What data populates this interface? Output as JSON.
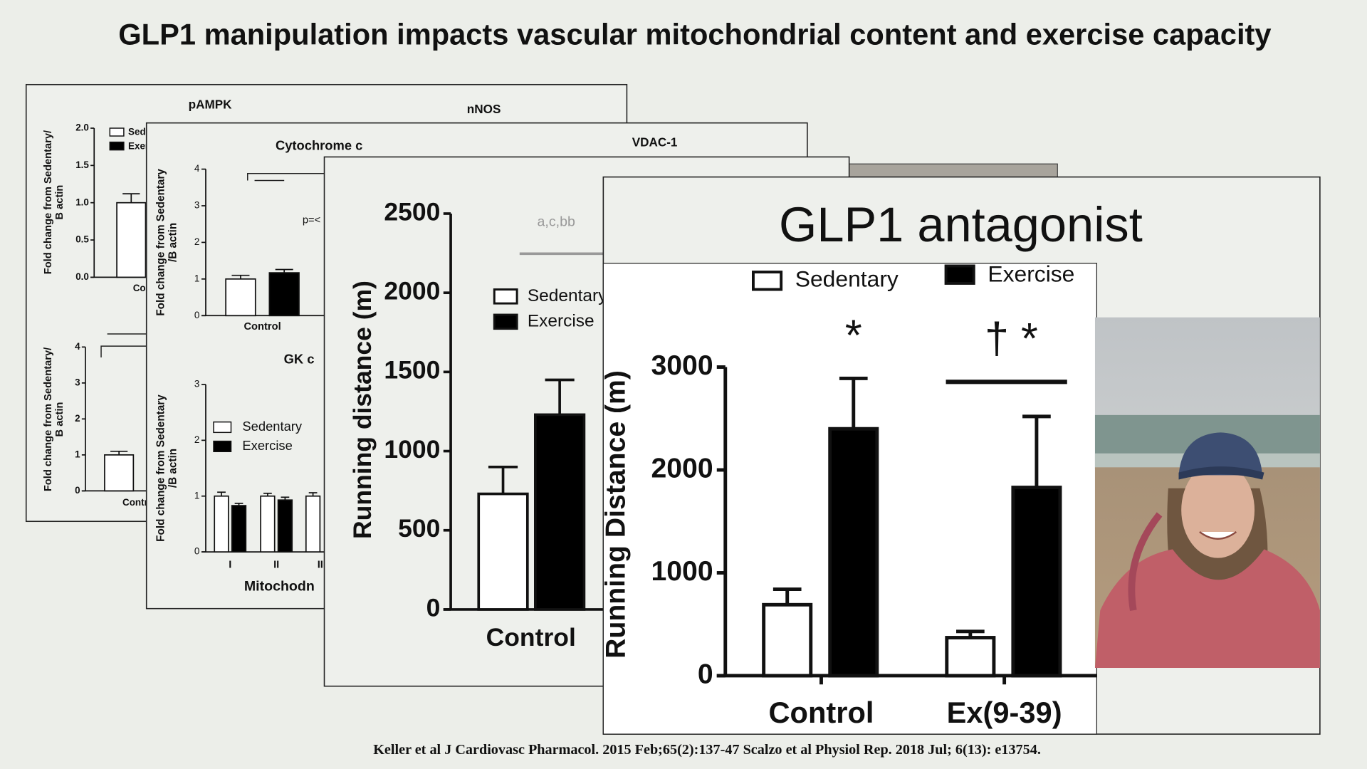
{
  "title": "GLP1 manipulation impacts vascular mitochondrial content and exercise capacity",
  "citation": "Keller et al  J Cardiovasc Pharmacol. 2015 Feb;65(2):137-47  Scalzo et al Physiol Rep. 2018 Jul; 6(13): e13754.",
  "labels": [
    "nNOS",
    "VDAC-1",
    "GK c",
    "p=<"
  ],
  "chart_data": [
    {
      "type": "bar",
      "title": "pAMPK",
      "ylabel": "Fold change from Sedentary/\nB actin",
      "categories": [
        "Control"
      ],
      "ylim": [
        0,
        2
      ],
      "yticks": [
        {
          "value": 0,
          "label": "0.0"
        },
        {
          "value": 0.5,
          "label": "0.5"
        },
        {
          "value": 1,
          "label": "1.0"
        },
        {
          "value": 1.5,
          "label": "1.5"
        },
        {
          "value": 2,
          "label": "2.0"
        }
      ],
      "series": [
        {
          "name": "Sedentary",
          "color": "#ffffff",
          "values": [
            1.0
          ],
          "errors": [
            0.12
          ]
        },
        {
          "name": "Exercise",
          "color": "#000000",
          "values": [
            null
          ],
          "errors": [
            null
          ]
        }
      ]
    },
    {
      "type": "bar",
      "ylabel": "Fold change from Sedentary/\nB actin",
      "categories": [
        "Control"
      ],
      "ylim": [
        0,
        4
      ],
      "yticks": [
        0,
        1,
        2,
        3,
        4
      ],
      "series": [
        {
          "name": "Sedentary",
          "color": "#ffffff",
          "values": [
            1.0
          ],
          "errors": [
            0.1
          ]
        }
      ]
    },
    {
      "type": "bar",
      "title": "Cytochrome c",
      "ylabel": "Fold change from Sedentary\n/B actin",
      "categories": [
        "Control"
      ],
      "ylim": [
        0,
        4
      ],
      "yticks": [
        0,
        1,
        2,
        3,
        4
      ],
      "series": [
        {
          "name": "Sedentary",
          "color": "#ffffff",
          "values": [
            1.0
          ],
          "errors": [
            0.1
          ]
        },
        {
          "name": "Exercise",
          "color": "#000000",
          "values": [
            1.17
          ],
          "errors": [
            0.09
          ]
        }
      ]
    },
    {
      "type": "bar",
      "ylabel": "Fold change from Sedentary\n/B actin",
      "xlabel": "Mitochodn",
      "categories": [
        "I",
        "II",
        "III"
      ],
      "ylim": [
        0,
        3
      ],
      "yticks": [
        0,
        1,
        2,
        3
      ],
      "series": [
        {
          "name": "Sedentary",
          "color": "#ffffff",
          "values": [
            1.0,
            1.0,
            1.0
          ],
          "errors": [
            0.07,
            0.05,
            0.06
          ]
        },
        {
          "name": "Exercise",
          "color": "#000000",
          "values": [
            0.83,
            0.93,
            null
          ],
          "errors": [
            0.04,
            0.05,
            null
          ]
        }
      ]
    },
    {
      "type": "bar",
      "ylabel": "Running distance (m)",
      "annotations": [
        "a,c,bb"
      ],
      "categories": [
        "Control"
      ],
      "ylim": [
        0,
        2500
      ],
      "yticks": [
        0,
        500,
        1000,
        1500,
        2000,
        2500
      ],
      "series": [
        {
          "name": "Sedentary",
          "color": "#ffffff",
          "values": [
            730
          ],
          "errors": [
            170
          ]
        },
        {
          "name": "Exercise",
          "color": "#000000",
          "values": [
            1230
          ],
          "errors": [
            220
          ]
        }
      ]
    },
    {
      "type": "bar",
      "title": "GLP1 antagonist",
      "ylabel": "Running Distance  (m)",
      "annotations": [
        "*",
        "† *"
      ],
      "categories": [
        "Control",
        "Ex(9-39)"
      ],
      "ylim": [
        0,
        3000
      ],
      "yticks": [
        0,
        1000,
        2000,
        3000
      ],
      "series": [
        {
          "name": "Sedentary",
          "color": "#ffffff",
          "values": [
            690,
            370
          ],
          "errors": [
            150,
            60
          ]
        },
        {
          "name": "Exercise",
          "color": "#000000",
          "values": [
            2400,
            1830
          ],
          "errors": [
            490,
            690
          ]
        }
      ]
    }
  ]
}
